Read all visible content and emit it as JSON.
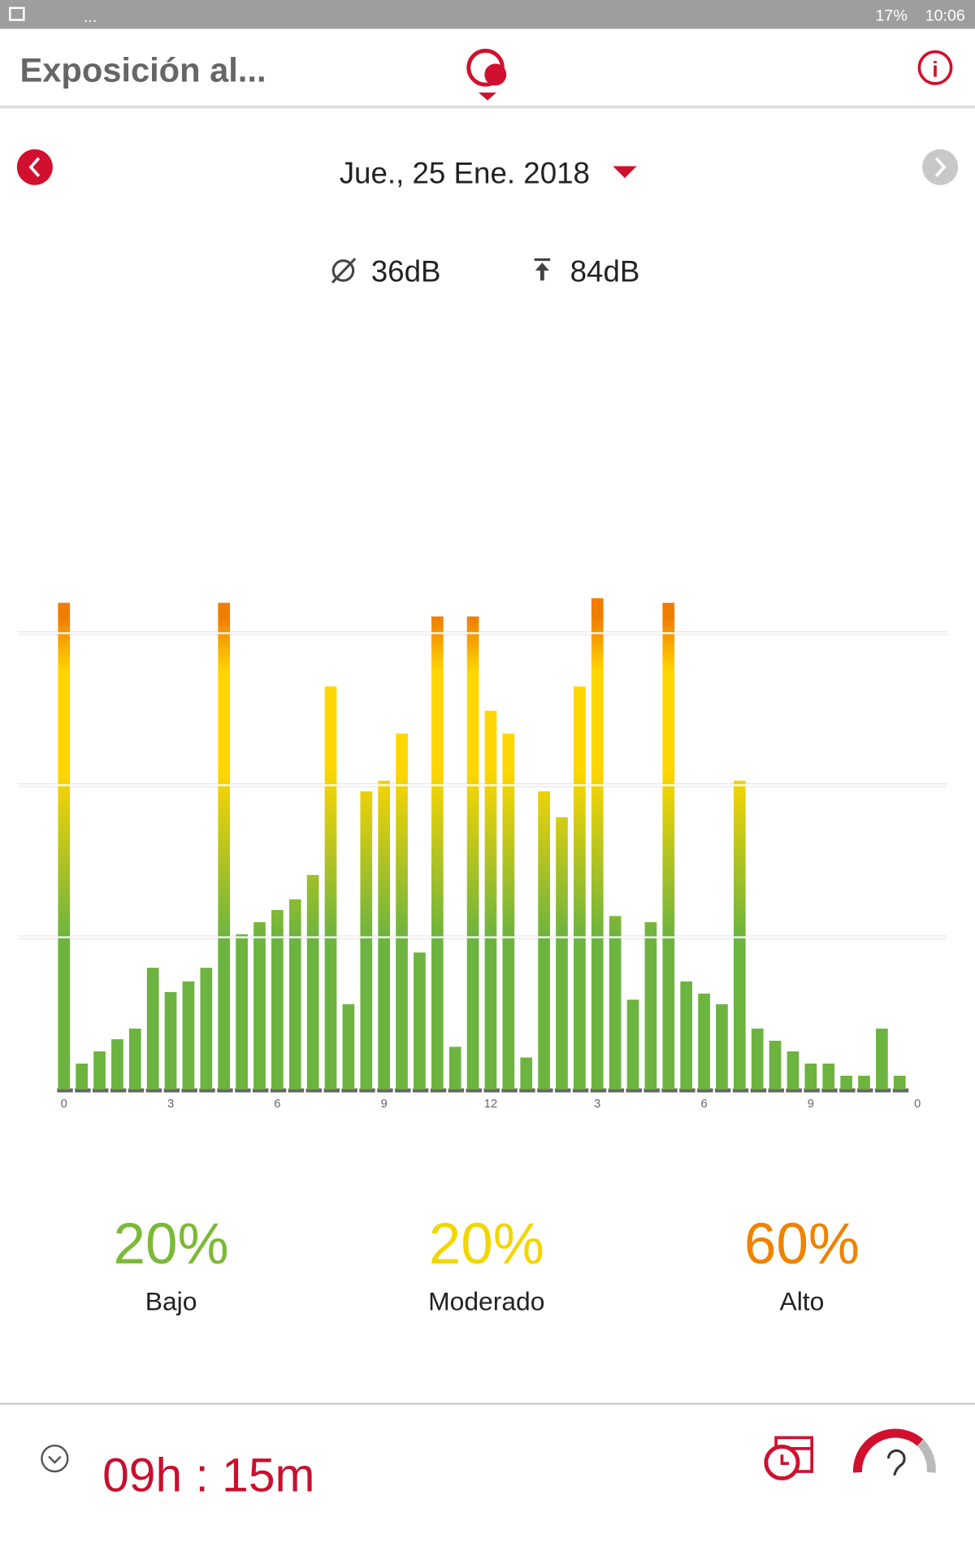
{
  "status_bar": {
    "left": "...",
    "battery": "17%",
    "time": "10:06"
  },
  "header": {
    "title": "Exposición al..."
  },
  "date": "Jue., 25 Ene. 2018",
  "stats": {
    "average": "36dB",
    "peak": "84dB"
  },
  "chart_data": {
    "type": "bar",
    "x": [
      0,
      0.5,
      1,
      1.5,
      2,
      2.5,
      3,
      3.5,
      4,
      4.5,
      5,
      5.5,
      6,
      6.5,
      7,
      7.5,
      8,
      8.5,
      9,
      9.5,
      10,
      10.5,
      11,
      11.5,
      12,
      12.5,
      13,
      13.5,
      14,
      14.5,
      15,
      15.5,
      16,
      16.5,
      17,
      17.5,
      18,
      18.5,
      19,
      19.5,
      20,
      20.5,
      21,
      21.5,
      22,
      22.5,
      23,
      23.5
    ],
    "values": [
      3.2,
      0.17,
      0.25,
      0.33,
      0.4,
      0.8,
      0.64,
      0.71,
      0.8,
      3.2,
      1.02,
      1.1,
      1.18,
      1.25,
      1.41,
      2.65,
      0.56,
      1.96,
      2.03,
      2.34,
      0.9,
      3.11,
      0.28,
      3.11,
      2.49,
      2.34,
      0.21,
      1.96,
      1.79,
      2.65,
      3.23,
      1.14,
      0.59,
      1.1,
      3.2,
      0.71,
      0.63,
      0.56,
      2.03,
      0.4,
      0.32,
      0.25,
      0.17,
      0.17,
      0.09,
      0.09,
      0.4,
      0.09
    ],
    "xlim": [
      -1.1,
      23.8
    ],
    "xticks": [
      0,
      3,
      6,
      9,
      12,
      {
        "value": 15,
        "label": "3"
      },
      {
        "value": 18,
        "label": "6"
      },
      {
        "value": 21,
        "label": "9"
      },
      {
        "value": 24,
        "label": "0"
      }
    ],
    "ylim": [
      0,
      3.5
    ],
    "gridlines": [
      1,
      2,
      3
    ],
    "colors": [
      "#6db33f",
      "#ffd600",
      "#f07d00"
    ]
  },
  "summary": [
    {
      "value": "20%",
      "label": "Bajo",
      "color": "#7cb937"
    },
    {
      "value": "20%",
      "label": "Moderado",
      "color": "#f2d600"
    },
    {
      "value": "60%",
      "label": "Alto",
      "color": "#ee8300"
    }
  ],
  "footer": {
    "duration": "09h : 15m"
  }
}
